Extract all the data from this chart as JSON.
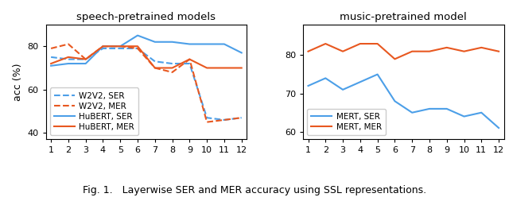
{
  "layers": [
    1,
    2,
    3,
    4,
    5,
    6,
    7,
    8,
    9,
    10,
    11,
    12
  ],
  "speech_w2v2_ser": [
    75,
    74,
    74,
    79,
    79,
    79,
    73,
    72,
    72,
    47,
    46,
    47
  ],
  "speech_w2v2_mer": [
    79,
    81,
    74,
    80,
    80,
    79,
    70,
    68,
    74,
    45,
    46,
    47
  ],
  "speech_hubert_ser": [
    71,
    72,
    72,
    80,
    80,
    85,
    82,
    82,
    81,
    81,
    81,
    77
  ],
  "speech_hubert_mer": [
    72,
    75,
    74,
    80,
    80,
    80,
    70,
    70,
    74,
    70,
    70,
    70
  ],
  "music_mert_ser": [
    72,
    74,
    71,
    73,
    75,
    68,
    65,
    66,
    66,
    64,
    65,
    61
  ],
  "music_mert_mer": [
    81,
    83,
    81,
    83,
    83,
    79,
    81,
    81,
    82,
    81,
    82,
    81
  ],
  "left_title": "speech-pretrained models",
  "right_title": "music-pretrained model",
  "ylabel": "acc (%)",
  "caption": "Fig. 1.   Layerwise SER and MER accuracy using SSL representations.",
  "ylim_left": [
    37,
    90
  ],
  "ylim_right": [
    58,
    88
  ],
  "yticks_left": [
    40,
    60,
    80
  ],
  "yticks_right": [
    60,
    70,
    80
  ],
  "color_blue": "#4C9FE8",
  "color_orange": "#E85820",
  "legend_left": [
    "W2V2, SER",
    "W2V2, MER",
    "HuBERT, SER",
    "HuBERT, MER"
  ],
  "legend_right": [
    "MERT, SER",
    "MERT, MER"
  ]
}
